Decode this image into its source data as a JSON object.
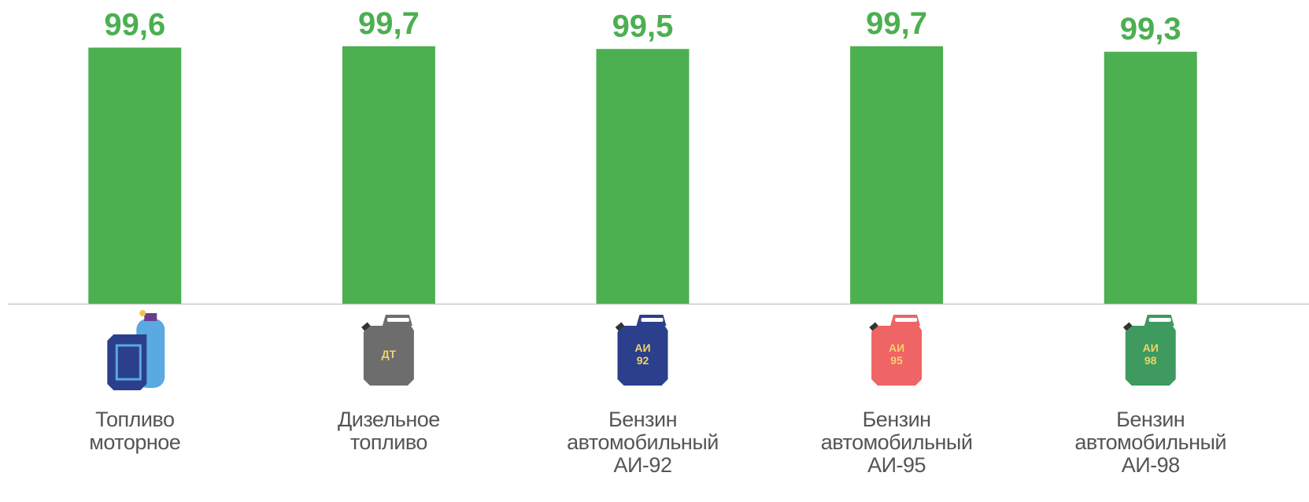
{
  "chart_data": {
    "type": "bar",
    "categories": [
      "Топливо\nмоторное",
      "Дизельное\nтопливо",
      "Бензин\nавтомобильный\nАИ-92",
      "Бензин\nавтомобильный\nАИ-95",
      "Бензин\nавтомобильный\nАИ-98"
    ],
    "values": [
      99.6,
      99.7,
      99.5,
      99.7,
      99.3
    ],
    "value_labels": [
      "99,6",
      "99,7",
      "99,5",
      "99,7",
      "99,3"
    ],
    "color": "#4caf50",
    "ylim": [
      81,
      100
    ],
    "icon_labels": [
      null,
      "ДТ",
      "АИ\n92",
      "АИ\n95",
      "АИ\n98"
    ],
    "icon_colors": [
      "#2b3f8c",
      "#6d6d6d",
      "#2b3f8c",
      "#ef6464",
      "#3e9a5e"
    ]
  }
}
